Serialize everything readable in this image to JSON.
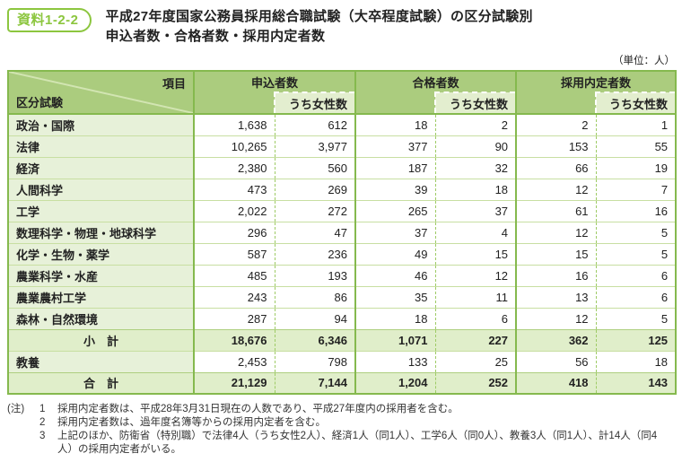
{
  "badge": "資料1-2-2",
  "title": {
    "line1": "平成27年度国家公務員採用総合職試験（大卒程度試験）の区分試験別",
    "line2": "申込者数・合格者数・採用内定者数"
  },
  "unit_note": "（単位：人）",
  "colors": {
    "accent_green": "#8cc63f",
    "table_border": "#85b94e",
    "header_bg": "#abcc7e",
    "subheader_bg": "#e3eecf",
    "category_bg": "#e7f1d9",
    "total_row_bg": "#e0eeca",
    "row_separator": "#c8dfa2",
    "dashed_separator": "#9ecb66"
  },
  "table": {
    "corner": {
      "top_right": "項目",
      "bottom_left": "区分試験"
    },
    "groups": [
      {
        "label": "申込者数",
        "sub": "うち女性数"
      },
      {
        "label": "合格者数",
        "sub": "うち女性数"
      },
      {
        "label": "採用内定者数",
        "sub": "うち女性数"
      }
    ],
    "rows": [
      {
        "type": "data",
        "label": "政治・国際",
        "values": [
          "1,638",
          "612",
          "18",
          "2",
          "2",
          "1"
        ]
      },
      {
        "type": "data",
        "label": "法律",
        "values": [
          "10,265",
          "3,977",
          "377",
          "90",
          "153",
          "55"
        ]
      },
      {
        "type": "data",
        "label": "経済",
        "values": [
          "2,380",
          "560",
          "187",
          "32",
          "66",
          "19"
        ]
      },
      {
        "type": "data",
        "label": "人間科学",
        "values": [
          "473",
          "269",
          "39",
          "18",
          "12",
          "7"
        ]
      },
      {
        "type": "data",
        "label": "工学",
        "values": [
          "2,022",
          "272",
          "265",
          "37",
          "61",
          "16"
        ]
      },
      {
        "type": "data",
        "label": "数理科学・物理・地球科学",
        "values": [
          "296",
          "47",
          "37",
          "4",
          "12",
          "5"
        ]
      },
      {
        "type": "data",
        "label": "化学・生物・薬学",
        "values": [
          "587",
          "236",
          "49",
          "15",
          "15",
          "5"
        ]
      },
      {
        "type": "data",
        "label": "農業科学・水産",
        "values": [
          "485",
          "193",
          "46",
          "12",
          "16",
          "6"
        ]
      },
      {
        "type": "data",
        "label": "農業農村工学",
        "values": [
          "243",
          "86",
          "35",
          "11",
          "13",
          "6"
        ]
      },
      {
        "type": "data",
        "label": "森林・自然環境",
        "values": [
          "287",
          "94",
          "18",
          "6",
          "12",
          "5"
        ]
      },
      {
        "type": "subtotal",
        "label": "小　計",
        "values": [
          "18,676",
          "6,346",
          "1,071",
          "227",
          "362",
          "125"
        ]
      },
      {
        "type": "data",
        "label": "教養",
        "values": [
          "2,453",
          "798",
          "133",
          "25",
          "56",
          "18"
        ]
      },
      {
        "type": "total",
        "label": "合　計",
        "values": [
          "21,129",
          "7,144",
          "1,204",
          "252",
          "418",
          "143"
        ]
      }
    ]
  },
  "notes": {
    "prefix": "(注)",
    "items": [
      {
        "num": "1",
        "text": "採用内定者数は、平成28年3月31日現在の人数であり、平成27年度内の採用者を含む。"
      },
      {
        "num": "2",
        "text": "採用内定者数は、過年度名簿等からの採用内定者を含む。"
      },
      {
        "num": "3",
        "text": "上記のほか、防衛省（特別職）で法律4人（うち女性2人）、経済1人（同1人）、工学6人（同0人）、教養3人（同1人）、計14人（同4人）の採用内定者がいる。"
      }
    ]
  }
}
